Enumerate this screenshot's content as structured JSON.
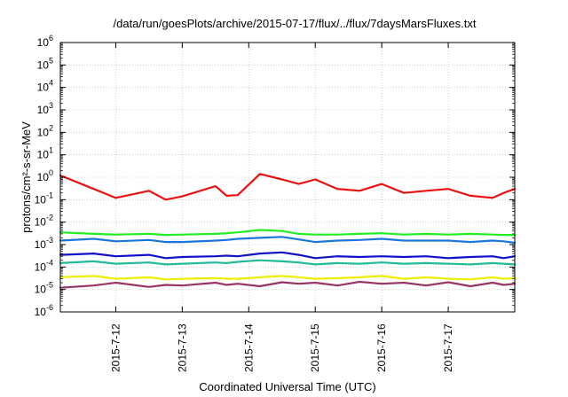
{
  "chart_data": {
    "type": "line",
    "title": "/data/run/goesPlots/archive/2015-07-17/flux/../flux/7daysMarsFluxes.txt",
    "xlabel": "Coordinated Universal Time (UTC)",
    "ylabel": "protons/cm²-s-sr-MeV",
    "y_scale": "log",
    "ylim": [
      1e-06,
      1000000.0
    ],
    "xlim": [
      "2015-07-11 04:00",
      "2015-07-18 00:00"
    ],
    "grid": true,
    "legend": "none",
    "x_tick_labels": [
      "2015-7-12",
      "2015-7-13",
      "2015-7-14",
      "2015-7-15",
      "2015-7-16",
      "2015-7-17"
    ],
    "y_tick_labels": [
      {
        "base": "10",
        "exp": "-6"
      },
      {
        "base": "10",
        "exp": "-5"
      },
      {
        "base": "10",
        "exp": "-4"
      },
      {
        "base": "10",
        "exp": "-3"
      },
      {
        "base": "10",
        "exp": "-2"
      },
      {
        "base": "10",
        "exp": "-1"
      },
      {
        "base": "10",
        "exp": "0"
      },
      {
        "base": "10",
        "exp": "1"
      },
      {
        "base": "10",
        "exp": "2"
      },
      {
        "base": "10",
        "exp": "3"
      },
      {
        "base": "10",
        "exp": "4"
      },
      {
        "base": "10",
        "exp": "5"
      },
      {
        "base": "10",
        "exp": "6"
      }
    ],
    "x": [
      "07-11 04:00",
      "07-11 16:00",
      "07-12 00:00",
      "07-12 12:00",
      "07-12 18:00",
      "07-13 00:00",
      "07-13 12:00",
      "07-13 16:00",
      "07-13 20:00",
      "07-14 04:00",
      "07-14 12:00",
      "07-14 18:00",
      "07-15 00:00",
      "07-15 08:00",
      "07-15 16:00",
      "07-16 00:00",
      "07-16 08:00",
      "07-16 16:00",
      "07-17 00:00",
      "07-17 08:00",
      "07-17 16:00",
      "07-17 20:00",
      "07-18 00:00"
    ],
    "series": [
      {
        "color": "#ee1111",
        "values": [
          1.2,
          0.3,
          0.12,
          0.25,
          0.1,
          0.14,
          0.4,
          0.15,
          0.16,
          1.4,
          0.8,
          0.5,
          0.8,
          0.3,
          0.25,
          0.5,
          0.2,
          0.25,
          0.3,
          0.15,
          0.12,
          0.2,
          0.3
        ]
      },
      {
        "color": "#22ee22",
        "values": [
          0.0035,
          0.003,
          0.0028,
          0.003,
          0.0027,
          0.0028,
          0.003,
          0.0032,
          0.0035,
          0.0045,
          0.004,
          0.003,
          0.0028,
          0.0028,
          0.003,
          0.0032,
          0.0028,
          0.003,
          0.0028,
          0.003,
          0.0028,
          0.0027,
          0.0027
        ]
      },
      {
        "color": "#1a76dd",
        "values": [
          0.0015,
          0.0018,
          0.0014,
          0.0016,
          0.0013,
          0.0013,
          0.0015,
          0.0016,
          0.0018,
          0.002,
          0.0022,
          0.0017,
          0.0013,
          0.0015,
          0.0016,
          0.0018,
          0.0015,
          0.0015,
          0.0015,
          0.0013,
          0.0015,
          0.0014,
          0.0012
        ]
      },
      {
        "color": "#1111cc",
        "values": [
          0.00035,
          0.0004,
          0.0003,
          0.00035,
          0.00025,
          0.00028,
          0.0003,
          0.00032,
          0.0003,
          0.0004,
          0.00045,
          0.00035,
          0.00025,
          0.0003,
          0.00028,
          0.0003,
          0.00028,
          0.0003,
          0.00025,
          0.00028,
          0.0003,
          0.00025,
          0.0003
        ]
      },
      {
        "color": "#22bb99",
        "values": [
          0.00015,
          0.00018,
          0.00014,
          0.00016,
          0.00013,
          0.00014,
          0.00016,
          0.00015,
          0.00017,
          0.0002,
          0.00018,
          0.00016,
          0.00013,
          0.00015,
          0.00014,
          0.00016,
          0.00014,
          0.00015,
          0.00014,
          0.00013,
          0.00015,
          0.00014,
          0.00013
        ]
      },
      {
        "color": "#eeee00",
        "values": [
          3.5e-05,
          4e-05,
          3e-05,
          3.5e-05,
          2.8e-05,
          3e-05,
          3.2e-05,
          3e-05,
          3e-05,
          3.5e-05,
          4e-05,
          3.5e-05,
          3e-05,
          3.2e-05,
          3.5e-05,
          4e-05,
          3e-05,
          3.5e-05,
          3e-05,
          2.8e-05,
          3.5e-05,
          3e-05,
          3.2e-05
        ]
      },
      {
        "color": "#993366",
        "values": [
          1.2e-05,
          1.5e-05,
          2e-05,
          1.3e-05,
          1.6e-05,
          1.5e-05,
          2e-05,
          1.6e-05,
          1.8e-05,
          1.4e-05,
          2.1e-05,
          1.8e-05,
          2e-05,
          1.5e-05,
          2.2e-05,
          1.8e-05,
          2e-05,
          1.5e-05,
          2.1e-05,
          1.4e-05,
          2e-05,
          1.6e-05,
          1.8e-05
        ]
      }
    ]
  }
}
